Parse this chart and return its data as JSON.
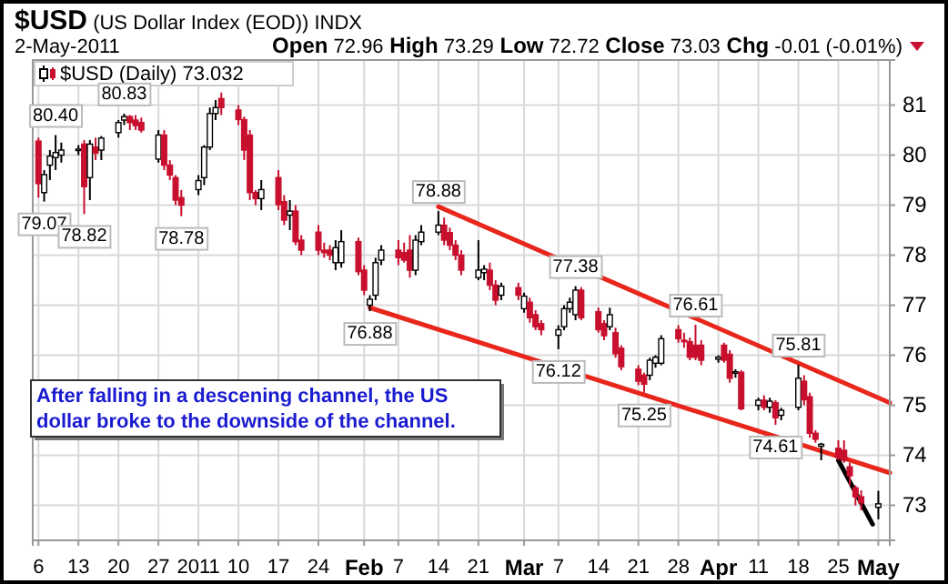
{
  "chart_data": {
    "type": "candlestick",
    "title": "$USD (US Dollar Index (EOD)) INDX",
    "subtitle": "2-May-2011",
    "annotations": [
      "Open 72.96 High 73.29 Low 72.72 Close 73.03 Chg -0.01 (-0.01%)",
      "$USD (Daily) 73.032",
      "After falling in a descening channel, the US dollar broke to the downside of the channel.",
      {
        "text": "79.07",
        "x": "2010-12-07",
        "y": 79.07
      },
      {
        "text": "80.40",
        "x": "2010-12-09",
        "y": 80.4
      },
      {
        "text": "78.82",
        "x": "2010-12-14",
        "y": 78.82
      },
      {
        "text": "80.83",
        "x": "2010-12-21",
        "y": 80.83
      },
      {
        "text": "78.78",
        "x": "2010-12-31",
        "y": 78.78
      },
      {
        "text": "78.88",
        "x": "2011-02-14",
        "y": 78.88
      },
      {
        "text": "76.88",
        "x": "2011-02-02",
        "y": 76.88
      },
      {
        "text": "77.38",
        "x": "2011-03-10",
        "y": 77.38
      },
      {
        "text": "76.12",
        "x": "2011-03-07",
        "y": 76.12
      },
      {
        "text": "76.61",
        "x": "2011-03-31",
        "y": 76.61
      },
      {
        "text": "75.25",
        "x": "2011-03-22",
        "y": 75.25
      },
      {
        "text": "75.81",
        "x": "2011-04-18",
        "y": 75.81
      },
      {
        "text": "74.61",
        "x": "2011-04-14",
        "y": 74.61
      }
    ],
    "x": [
      "2010-12-06",
      "2010-12-07",
      "2010-12-08",
      "2010-12-09",
      "2010-12-10",
      "2010-12-13",
      "2010-12-14",
      "2010-12-15",
      "2010-12-16",
      "2010-12-17",
      "2010-12-20",
      "2010-12-21",
      "2010-12-22",
      "2010-12-23",
      "2010-12-24",
      "2010-12-27",
      "2010-12-28",
      "2010-12-29",
      "2010-12-30",
      "2010-12-31",
      "2011-01-03",
      "2011-01-04",
      "2011-01-05",
      "2011-01-06",
      "2011-01-07",
      "2011-01-10",
      "2011-01-11",
      "2011-01-12",
      "2011-01-13",
      "2011-01-14",
      "2011-01-17",
      "2011-01-18",
      "2011-01-19",
      "2011-01-20",
      "2011-01-21",
      "2011-01-24",
      "2011-01-25",
      "2011-01-26",
      "2011-01-27",
      "2011-01-28",
      "2011-01-31",
      "2011-02-01",
      "2011-02-02",
      "2011-02-03",
      "2011-02-04",
      "2011-02-07",
      "2011-02-08",
      "2011-02-09",
      "2011-02-10",
      "2011-02-11",
      "2011-02-14",
      "2011-02-15",
      "2011-02-16",
      "2011-02-17",
      "2011-02-18",
      "2011-02-21",
      "2011-02-22",
      "2011-02-23",
      "2011-02-24",
      "2011-02-25",
      "2011-02-28",
      "2011-03-01",
      "2011-03-02",
      "2011-03-03",
      "2011-03-04",
      "2011-03-07",
      "2011-03-08",
      "2011-03-09",
      "2011-03-10",
      "2011-03-11",
      "2011-03-14",
      "2011-03-15",
      "2011-03-16",
      "2011-03-17",
      "2011-03-18",
      "2011-03-21",
      "2011-03-22",
      "2011-03-23",
      "2011-03-24",
      "2011-03-25",
      "2011-03-28",
      "2011-03-29",
      "2011-03-30",
      "2011-03-31",
      "2011-04-01",
      "2011-04-04",
      "2011-04-05",
      "2011-04-06",
      "2011-04-07",
      "2011-04-08",
      "2011-04-11",
      "2011-04-12",
      "2011-04-13",
      "2011-04-14",
      "2011-04-15",
      "2011-04-18",
      "2011-04-19",
      "2011-04-20",
      "2011-04-21",
      "2011-04-22",
      "2011-04-25",
      "2011-04-26",
      "2011-04-27",
      "2011-04-28",
      "2011-04-29",
      "2011-05-02"
    ],
    "ohlc": [
      [
        80.28,
        80.35,
        79.15,
        79.43
      ],
      [
        79.25,
        79.7,
        79.07,
        79.61
      ],
      [
        79.8,
        80.1,
        79.5,
        79.98
      ],
      [
        79.95,
        80.4,
        79.7,
        80.05
      ],
      [
        80.0,
        80.25,
        79.85,
        80.1
      ],
      [
        80.1,
        80.2,
        80.0,
        80.12
      ],
      [
        80.22,
        80.3,
        78.82,
        79.37
      ],
      [
        79.55,
        80.3,
        79.1,
        80.22
      ],
      [
        80.16,
        80.35,
        79.9,
        80.04
      ],
      [
        80.1,
        80.38,
        79.9,
        80.34
      ],
      [
        80.45,
        80.7,
        80.35,
        80.65
      ],
      [
        80.7,
        80.83,
        80.6,
        80.77
      ],
      [
        80.77,
        80.8,
        80.5,
        80.65
      ],
      [
        80.7,
        80.8,
        80.5,
        80.59
      ],
      [
        80.65,
        80.75,
        80.45,
        80.5
      ],
      [
        79.92,
        80.5,
        79.85,
        80.4
      ],
      [
        80.4,
        80.5,
        79.7,
        79.8
      ],
      [
        79.8,
        79.9,
        79.5,
        79.6
      ],
      [
        79.55,
        79.6,
        79.0,
        79.1
      ],
      [
        79.15,
        79.3,
        78.78,
        79.0
      ],
      [
        79.31,
        79.6,
        79.2,
        79.49
      ],
      [
        79.55,
        80.2,
        79.4,
        80.16
      ],
      [
        80.16,
        80.95,
        80.1,
        80.83
      ],
      [
        80.83,
        81.1,
        80.7,
        80.95
      ],
      [
        81.13,
        81.25,
        80.8,
        80.95
      ],
      [
        80.9,
        81.0,
        80.6,
        80.71
      ],
      [
        80.71,
        80.77,
        79.9,
        80.1
      ],
      [
        80.4,
        80.5,
        79.1,
        79.25
      ],
      [
        79.25,
        79.3,
        79.0,
        79.13
      ],
      [
        79.13,
        79.5,
        78.9,
        79.31
      ],
      [
        79.55,
        79.7,
        78.9,
        79.01
      ],
      [
        79.07,
        79.2,
        78.6,
        78.7
      ],
      [
        78.8,
        79.1,
        78.5,
        78.88
      ],
      [
        78.88,
        79.0,
        78.2,
        78.27
      ],
      [
        78.3,
        78.4,
        78.0,
        78.1
      ],
      [
        78.46,
        78.6,
        78.0,
        78.1
      ],
      [
        78.1,
        78.25,
        77.95,
        78.05
      ],
      [
        78.1,
        78.2,
        77.9,
        78.0
      ],
      [
        77.85,
        78.3,
        77.7,
        78.15
      ],
      [
        77.85,
        78.5,
        77.75,
        78.27
      ],
      [
        78.27,
        78.35,
        77.6,
        77.67
      ],
      [
        77.7,
        77.8,
        77.2,
        77.3
      ],
      [
        77.0,
        77.2,
        76.88,
        77.12
      ],
      [
        77.2,
        77.95,
        77.1,
        77.85
      ],
      [
        77.9,
        78.2,
        77.8,
        78.1
      ],
      [
        78.1,
        78.3,
        77.8,
        77.95
      ],
      [
        78.05,
        78.25,
        77.85,
        77.9
      ],
      [
        78.1,
        78.4,
        77.55,
        77.7
      ],
      [
        77.7,
        78.4,
        77.6,
        78.3
      ],
      [
        78.27,
        78.6,
        78.2,
        78.46
      ],
      [
        78.46,
        78.88,
        78.4,
        78.6
      ],
      [
        78.6,
        78.75,
        78.2,
        78.3
      ],
      [
        78.45,
        78.55,
        78.1,
        78.2
      ],
      [
        78.2,
        78.3,
        77.9,
        78.0
      ],
      [
        78.0,
        78.1,
        77.6,
        77.7
      ],
      [
        77.55,
        78.3,
        77.5,
        77.7
      ],
      [
        77.65,
        77.8,
        77.5,
        77.72
      ],
      [
        77.7,
        77.85,
        77.3,
        77.4
      ],
      [
        77.4,
        77.5,
        77.0,
        77.1
      ],
      [
        77.2,
        77.45,
        77.1,
        77.38
      ],
      [
        77.35,
        77.45,
        77.1,
        77.2
      ],
      [
        76.93,
        77.25,
        76.85,
        77.18
      ],
      [
        77.06,
        77.15,
        76.65,
        76.75
      ],
      [
        76.81,
        76.9,
        76.5,
        76.57
      ],
      [
        76.63,
        76.7,
        76.4,
        76.51
      ],
      [
        76.4,
        76.6,
        76.12,
        76.51
      ],
      [
        76.57,
        77.0,
        76.5,
        76.93
      ],
      [
        76.93,
        77.15,
        76.85,
        77.06
      ],
      [
        76.81,
        77.38,
        76.7,
        77.3
      ],
      [
        77.3,
        77.36,
        76.7,
        76.75
      ],
      [
        76.87,
        76.95,
        76.45,
        76.51
      ],
      [
        76.63,
        76.7,
        76.3,
        76.39
      ],
      [
        76.57,
        76.95,
        76.5,
        76.81
      ],
      [
        76.45,
        76.55,
        75.95,
        76.03
      ],
      [
        76.14,
        76.2,
        75.7,
        75.77
      ],
      [
        75.72,
        75.8,
        75.4,
        75.48
      ],
      [
        75.6,
        75.65,
        75.25,
        75.42
      ],
      [
        75.6,
        75.95,
        75.5,
        75.9
      ],
      [
        75.84,
        76.0,
        75.75,
        75.96
      ],
      [
        75.84,
        76.4,
        75.8,
        76.33
      ],
      [
        76.51,
        76.6,
        76.25,
        76.33
      ],
      [
        76.3,
        76.45,
        76.15,
        76.27
      ],
      [
        76.27,
        76.35,
        75.9,
        75.96
      ],
      [
        76.2,
        76.61,
        75.9,
        75.96
      ],
      [
        76.2,
        76.3,
        75.8,
        75.9
      ],
      [
        75.92,
        76.0,
        75.85,
        75.96
      ],
      [
        76.2,
        76.25,
        75.85,
        75.9
      ],
      [
        76.02,
        76.1,
        75.45,
        75.54
      ],
      [
        75.66,
        75.72,
        75.55,
        75.67
      ],
      [
        75.66,
        75.7,
        74.9,
        74.93
      ],
      [
        75.0,
        75.15,
        74.9,
        75.1
      ],
      [
        75.1,
        75.2,
        74.9,
        74.96
      ],
      [
        74.96,
        75.15,
        74.85,
        75.08
      ],
      [
        75.05,
        75.1,
        74.61,
        74.75
      ],
      [
        74.8,
        74.95,
        74.7,
        74.9
      ],
      [
        74.96,
        75.81,
        74.9,
        75.54
      ],
      [
        75.48,
        75.6,
        75.0,
        75.11
      ],
      [
        75.17,
        75.25,
        74.35,
        74.44
      ],
      [
        74.44,
        74.5,
        74.25,
        74.32
      ],
      [
        74.18,
        74.25,
        73.9,
        74.22
      ],
      [
        74.14,
        74.3,
        73.9,
        73.96
      ],
      [
        74.1,
        74.3,
        73.85,
        73.9
      ],
      [
        73.77,
        73.85,
        73.4,
        73.59
      ],
      [
        73.35,
        73.4,
        73.0,
        73.17
      ],
      [
        73.17,
        73.3,
        72.9,
        73.05
      ],
      [
        72.96,
        73.29,
        72.72,
        73.03
      ]
    ],
    "series": [
      {
        "type": "line",
        "color": "#e8261c",
        "x": [
          "2011-02-14",
          "2011-05-04"
        ],
        "values": [
          78.97,
          75.05
        ]
      },
      {
        "type": "line",
        "color": "#e8261c",
        "x": [
          "2011-02-02",
          "2011-05-04"
        ],
        "values": [
          76.95,
          73.65
        ]
      },
      {
        "type": "line",
        "color": "#000000",
        "x": [
          "2011-04-25",
          "2011-05-01"
        ],
        "values": [
          73.9,
          72.62
        ]
      }
    ],
    "xlim": [
      "2010-12-05",
      "2011-05-04"
    ],
    "xticks": [
      {
        "value": "2010-12-06",
        "label": "6"
      },
      {
        "value": "2010-12-13",
        "label": "13"
      },
      {
        "value": "2010-12-20",
        "label": "20"
      },
      {
        "value": "2010-12-27",
        "label": "27"
      },
      {
        "value": "2011-01-03",
        "label": "2011"
      },
      {
        "value": "2011-01-10",
        "label": "10"
      },
      {
        "value": "2011-01-17",
        "label": "17"
      },
      {
        "value": "2011-01-24",
        "label": "24"
      },
      {
        "value": "2011-02-01",
        "label": "Feb"
      },
      {
        "value": "2011-02-07",
        "label": "7"
      },
      {
        "value": "2011-02-14",
        "label": "14"
      },
      {
        "value": "2011-02-21",
        "label": "21"
      },
      {
        "value": "2011-03-01",
        "label": "Mar"
      },
      {
        "value": "2011-03-07",
        "label": "7"
      },
      {
        "value": "2011-03-14",
        "label": "14"
      },
      {
        "value": "2011-03-21",
        "label": "21"
      },
      {
        "value": "2011-03-28",
        "label": "28"
      },
      {
        "value": "2011-04-04",
        "label": "Apr"
      },
      {
        "value": "2011-04-11",
        "label": "11"
      },
      {
        "value": "2011-04-18",
        "label": "18"
      },
      {
        "value": "2011-04-25",
        "label": "25"
      },
      {
        "value": "2011-05-02",
        "label": "May"
      }
    ],
    "ylim": [
      72.3,
      81.9
    ],
    "yticks": [
      73,
      74,
      75,
      76,
      77,
      78,
      79,
      80,
      81
    ],
    "grid": true,
    "line_style": "solid"
  }
}
